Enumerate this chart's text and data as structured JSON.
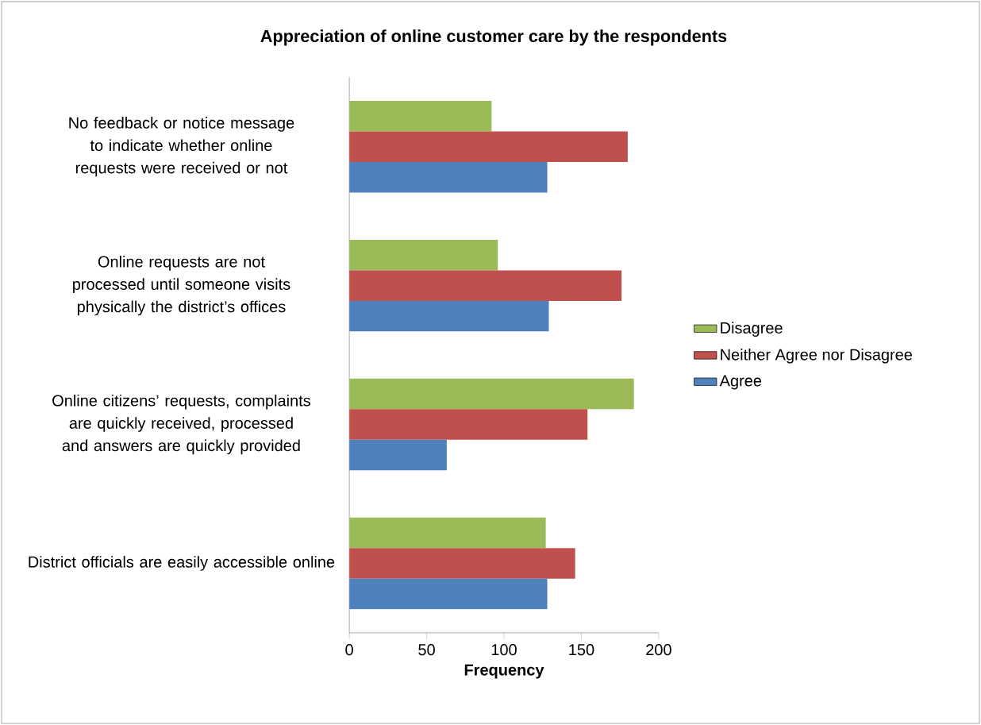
{
  "chart_data": {
    "type": "bar",
    "orientation": "horizontal",
    "title": "Appreciation of online customer care by the respondents",
    "xlabel": "Frequency",
    "categories": [
      "No feedback or notice message to indicate whether online requests were received or not",
      "Online requests are not processed until someone visits physically the district’s offices",
      "Online citizens’ requests, complaints are quickly received, processed and answers are quickly provided",
      "District officials are easily accessible online"
    ],
    "series": [
      {
        "name": "Disagree",
        "color": "#9bbb59",
        "values": [
          92,
          96,
          184,
          127
        ]
      },
      {
        "name": "Neither Agree nor Disagree",
        "color": "#c0504d",
        "values": [
          180,
          176,
          154,
          146
        ]
      },
      {
        "name": "Agree",
        "color": "#4f81bd",
        "values": [
          128,
          129,
          63,
          128
        ]
      }
    ],
    "xlim": [
      0,
      200
    ],
    "xticks": [
      0,
      50,
      100,
      150,
      200
    ],
    "legend": "right"
  }
}
